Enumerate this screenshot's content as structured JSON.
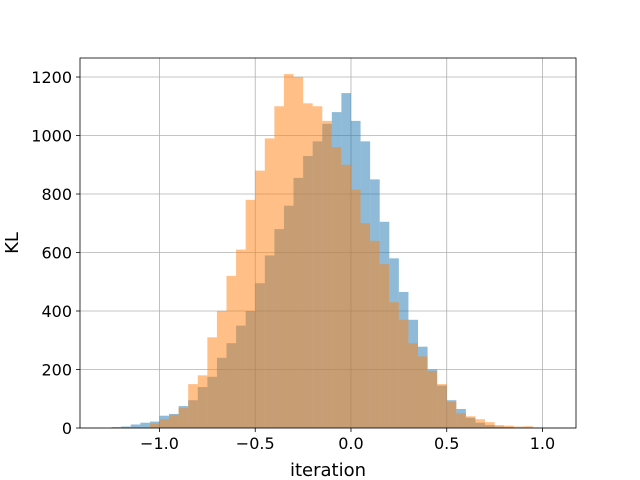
{
  "chart_data": {
    "type": "histogram",
    "title": "",
    "xlabel": "iteration",
    "ylabel": "KL",
    "xlim": [
      -1.415,
      1.175
    ],
    "ylim": [
      0,
      1265
    ],
    "grid": true,
    "legend": "none",
    "xticks": [
      -1.0,
      -0.5,
      0.0,
      0.5,
      1.0
    ],
    "xtick_labels": [
      "−1.0",
      "−0.5",
      "0.0",
      "0.5",
      "1.0"
    ],
    "yticks": [
      0,
      200,
      400,
      600,
      800,
      1000,
      1200
    ],
    "ytick_labels": [
      "0",
      "200",
      "400",
      "600",
      "800",
      "1000",
      "1200"
    ],
    "series": [
      {
        "color": "#1f77b4",
        "opacity": 0.5,
        "bins": [
          [
            -1.25,
            -1.2,
            3
          ],
          [
            -1.2,
            -1.15,
            5
          ],
          [
            -1.15,
            -1.1,
            12
          ],
          [
            -1.1,
            -1.05,
            18
          ],
          [
            -1.05,
            -1.0,
            22
          ],
          [
            -1.0,
            -0.95,
            42
          ],
          [
            -0.95,
            -0.9,
            48
          ],
          [
            -0.9,
            -0.85,
            75
          ],
          [
            -0.85,
            -0.8,
            95
          ],
          [
            -0.8,
            -0.75,
            140
          ],
          [
            -0.75,
            -0.7,
            175
          ],
          [
            -0.7,
            -0.65,
            240
          ],
          [
            -0.65,
            -0.6,
            290
          ],
          [
            -0.6,
            -0.55,
            350
          ],
          [
            -0.55,
            -0.5,
            400
          ],
          [
            -0.5,
            -0.45,
            495
          ],
          [
            -0.45,
            -0.4,
            590
          ],
          [
            -0.4,
            -0.35,
            680
          ],
          [
            -0.35,
            -0.3,
            760
          ],
          [
            -0.3,
            -0.25,
            855
          ],
          [
            -0.25,
            -0.2,
            930
          ],
          [
            -0.2,
            -0.15,
            980
          ],
          [
            -0.15,
            -0.1,
            1040
          ],
          [
            -0.1,
            -0.05,
            1080
          ],
          [
            -0.05,
            0.0,
            1145
          ],
          [
            0.0,
            0.05,
            1050
          ],
          [
            0.05,
            0.1,
            980
          ],
          [
            0.1,
            0.15,
            850
          ],
          [
            0.15,
            0.2,
            705
          ],
          [
            0.2,
            0.25,
            580
          ],
          [
            0.25,
            0.3,
            465
          ],
          [
            0.3,
            0.35,
            370
          ],
          [
            0.35,
            0.4,
            278
          ],
          [
            0.4,
            0.45,
            200
          ],
          [
            0.45,
            0.5,
            145
          ],
          [
            0.5,
            0.55,
            95
          ],
          [
            0.55,
            0.6,
            65
          ],
          [
            0.6,
            0.65,
            35
          ],
          [
            0.65,
            0.7,
            18
          ],
          [
            0.7,
            0.75,
            10
          ],
          [
            0.75,
            0.8,
            5
          ],
          [
            0.8,
            0.85,
            3
          ]
        ]
      },
      {
        "color": "#ff7f0e",
        "opacity": 0.5,
        "bins": [
          [
            -1.05,
            -1.0,
            15
          ],
          [
            -1.0,
            -0.95,
            30
          ],
          [
            -0.95,
            -0.9,
            45
          ],
          [
            -0.9,
            -0.85,
            68
          ],
          [
            -0.85,
            -0.8,
            150
          ],
          [
            -0.8,
            -0.75,
            180
          ],
          [
            -0.75,
            -0.7,
            310
          ],
          [
            -0.7,
            -0.65,
            400
          ],
          [
            -0.65,
            -0.6,
            520
          ],
          [
            -0.6,
            -0.55,
            610
          ],
          [
            -0.55,
            -0.5,
            780
          ],
          [
            -0.5,
            -0.45,
            880
          ],
          [
            -0.45,
            -0.4,
            990
          ],
          [
            -0.4,
            -0.35,
            1100
          ],
          [
            -0.35,
            -0.3,
            1210
          ],
          [
            -0.3,
            -0.25,
            1200
          ],
          [
            -0.25,
            -0.2,
            1110
          ],
          [
            -0.2,
            -0.15,
            1100
          ],
          [
            -0.15,
            -0.1,
            1050
          ],
          [
            -0.1,
            -0.05,
            960
          ],
          [
            -0.05,
            0.0,
            900
          ],
          [
            0.0,
            0.05,
            815
          ],
          [
            0.05,
            0.1,
            700
          ],
          [
            0.1,
            0.15,
            640
          ],
          [
            0.15,
            0.2,
            560
          ],
          [
            0.2,
            0.25,
            430
          ],
          [
            0.25,
            0.3,
            370
          ],
          [
            0.3,
            0.35,
            290
          ],
          [
            0.35,
            0.4,
            245
          ],
          [
            0.4,
            0.45,
            195
          ],
          [
            0.45,
            0.5,
            150
          ],
          [
            0.5,
            0.55,
            90
          ],
          [
            0.55,
            0.6,
            50
          ],
          [
            0.6,
            0.65,
            40
          ],
          [
            0.65,
            0.7,
            30
          ],
          [
            0.7,
            0.75,
            20
          ],
          [
            0.75,
            0.8,
            10
          ],
          [
            0.8,
            0.85,
            8
          ],
          [
            0.85,
            0.9,
            5
          ],
          [
            0.9,
            0.95,
            6
          ],
          [
            0.95,
            1.0,
            2
          ],
          [
            1.0,
            1.05,
            1
          ]
        ]
      }
    ]
  }
}
